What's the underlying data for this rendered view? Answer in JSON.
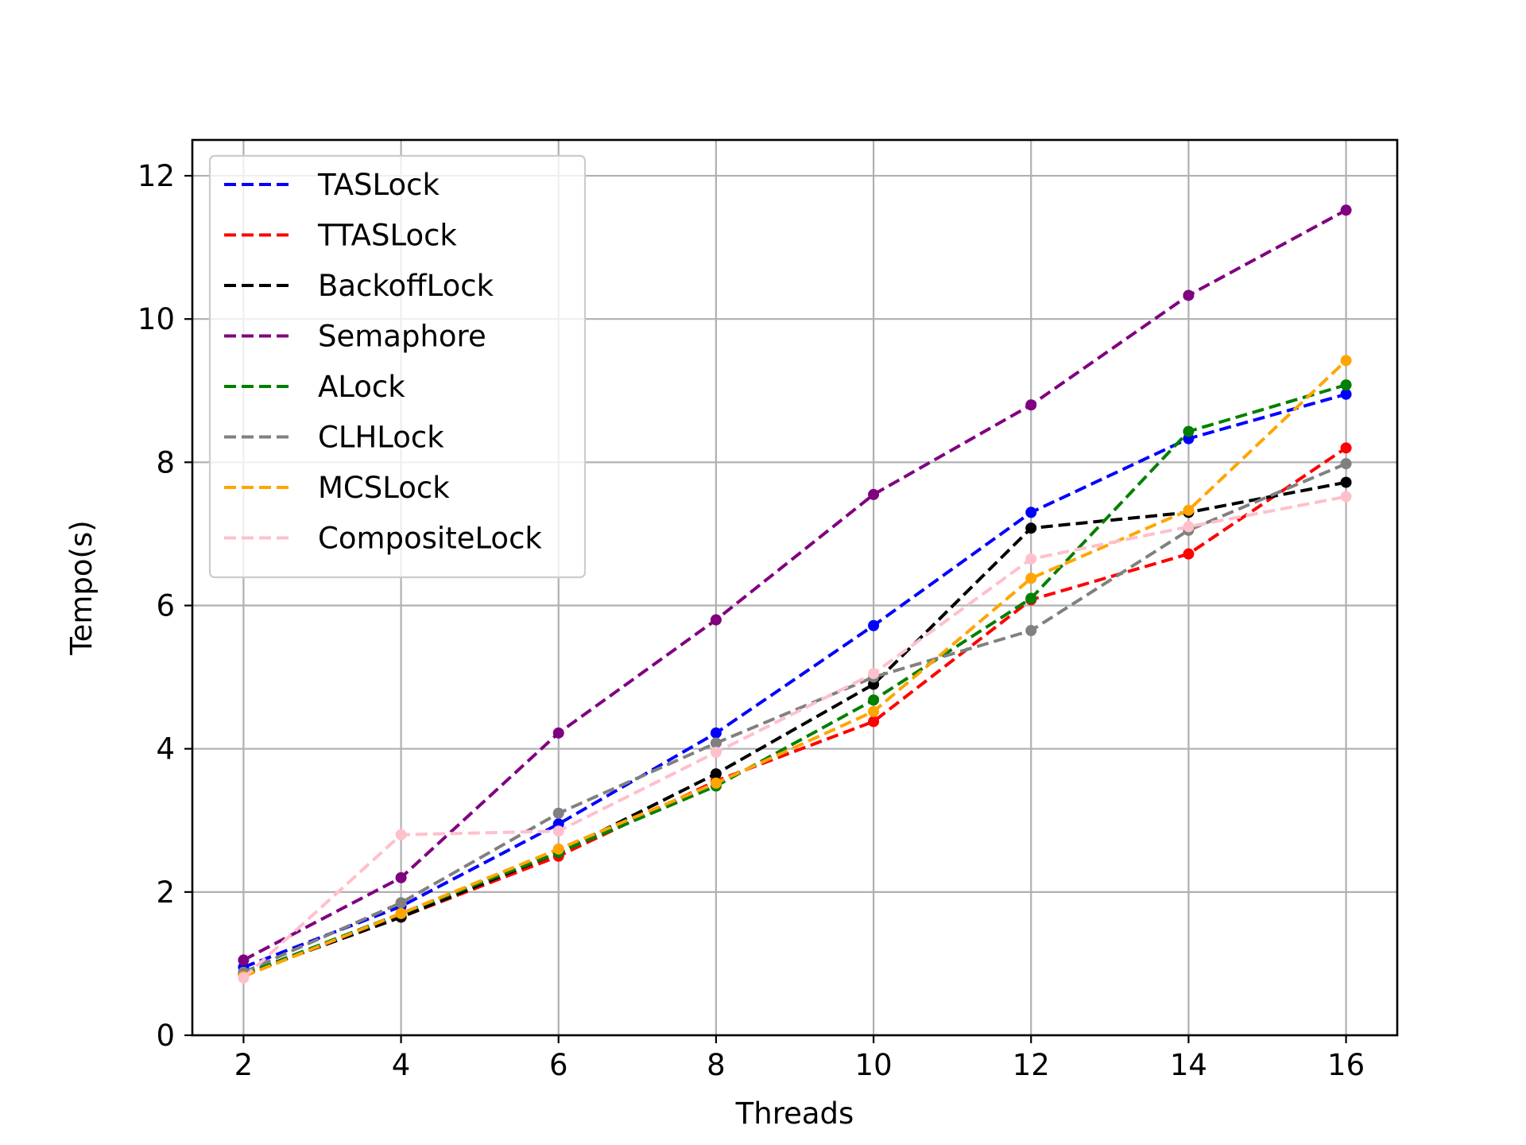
{
  "chart_data": {
    "type": "line",
    "title": "",
    "xlabel": "Threads",
    "ylabel": "Tempo(s)",
    "x": [
      2,
      4,
      6,
      8,
      10,
      12,
      14,
      16
    ],
    "xticks": [
      "2",
      "4",
      "6",
      "8",
      "10",
      "12",
      "14",
      "16"
    ],
    "yticks": [
      "0",
      "2",
      "4",
      "6",
      "8",
      "10",
      "12"
    ],
    "xlim": [
      1.35,
      16.65
    ],
    "ylim": [
      0,
      12.5
    ],
    "grid": true,
    "legend_position": "upper-left",
    "series": [
      {
        "name": "TASLock",
        "color": "#0000ff",
        "values": [
          0.95,
          1.8,
          2.95,
          4.22,
          5.72,
          7.3,
          8.33,
          8.95
        ]
      },
      {
        "name": "TTASLock",
        "color": "#ff0000",
        "values": [
          0.85,
          1.65,
          2.5,
          3.55,
          4.38,
          6.08,
          6.72,
          8.2
        ]
      },
      {
        "name": "BackoffLock",
        "color": "#000000",
        "values": [
          0.85,
          1.65,
          2.55,
          3.65,
          4.9,
          7.08,
          7.3,
          7.72
        ]
      },
      {
        "name": "Semaphore",
        "color": "#800080",
        "values": [
          1.05,
          2.2,
          4.22,
          5.8,
          7.55,
          8.8,
          10.33,
          11.52
        ]
      },
      {
        "name": "ALock",
        "color": "#008000",
        "values": [
          0.85,
          1.7,
          2.55,
          3.48,
          4.68,
          6.1,
          8.43,
          9.08
        ]
      },
      {
        "name": "CLHLock",
        "color": "#808080",
        "values": [
          0.88,
          1.85,
          3.1,
          4.08,
          5.0,
          5.65,
          7.05,
          7.98
        ]
      },
      {
        "name": "MCSLock",
        "color": "#ffa500",
        "values": [
          0.82,
          1.7,
          2.6,
          3.52,
          4.52,
          6.38,
          7.33,
          9.42
        ]
      },
      {
        "name": "CompositeLock",
        "color": "#ffc0cb",
        "values": [
          0.8,
          2.8,
          2.85,
          3.95,
          5.05,
          6.65,
          7.1,
          7.52
        ]
      }
    ]
  }
}
